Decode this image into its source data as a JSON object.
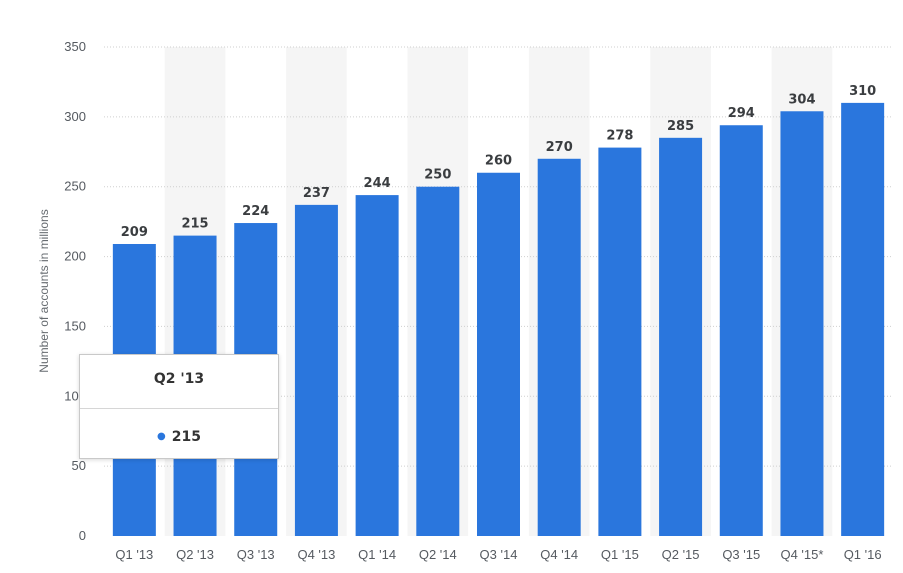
{
  "chart_data": {
    "type": "bar",
    "categories": [
      "Q1 '13",
      "Q2 '13",
      "Q3 '13",
      "Q4 '13",
      "Q1 '14",
      "Q2 '14",
      "Q3 '14",
      "Q4 '14",
      "Q1 '15",
      "Q2 '15",
      "Q3 '15",
      "Q4 '15*",
      "Q1 '16"
    ],
    "values": [
      209,
      215,
      224,
      237,
      244,
      250,
      260,
      270,
      278,
      285,
      294,
      304,
      310
    ],
    "ylabel": "Number of accounts in millions",
    "ylim": [
      0,
      350
    ],
    "yticks": [
      "0",
      "50",
      "100",
      "150",
      "200",
      "250",
      "300",
      "350"
    ],
    "grid": true,
    "bar_color": "#2a76dd",
    "band_color": "#f5f5f5",
    "tooltip": {
      "title": "Q2 '13",
      "value": "215"
    }
  }
}
